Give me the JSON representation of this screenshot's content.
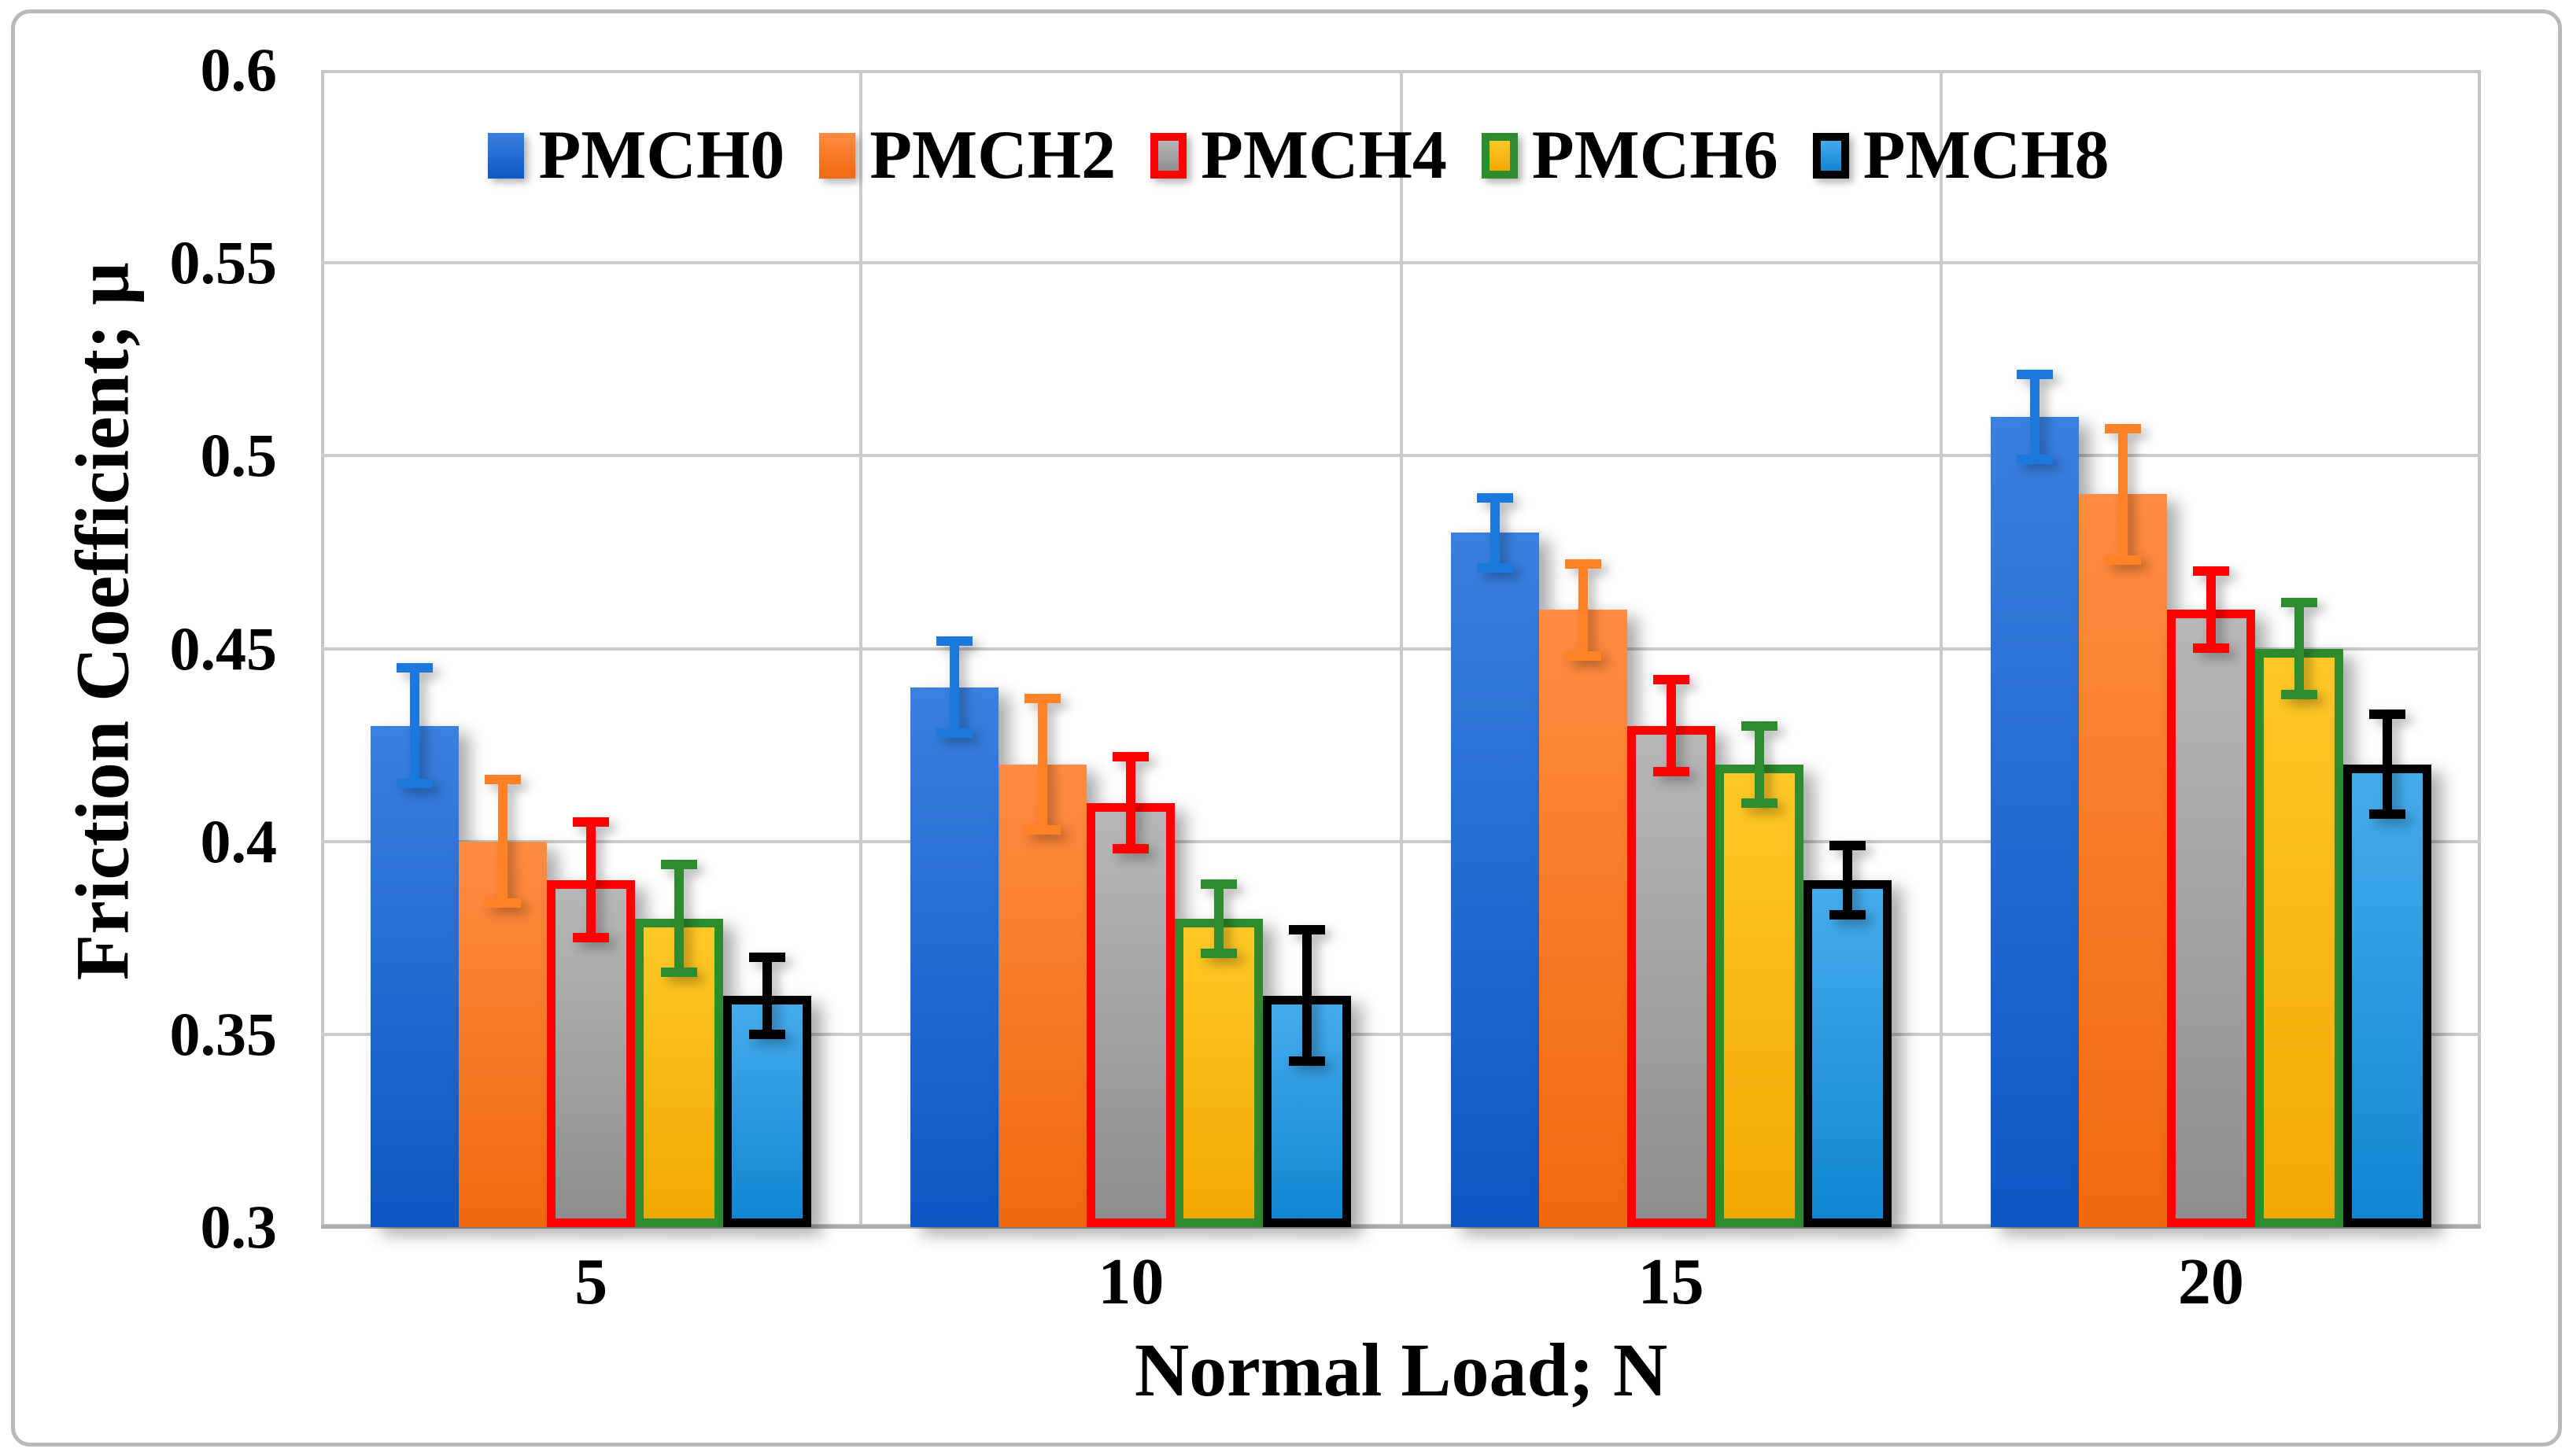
{
  "chart_data": {
    "type": "bar",
    "title": "",
    "xlabel": "Normal Load; N",
    "ylabel": "Friction Coefficient; μ",
    "categories": [
      "5",
      "10",
      "15",
      "20"
    ],
    "ylim": [
      0.3,
      0.6
    ],
    "ytick_step": 0.05,
    "ytick_labels": [
      "0.6",
      "0.55",
      "0.5",
      "0.45",
      "0.4",
      "0.35",
      "0.3"
    ],
    "grid": true,
    "legend_position": "top-center",
    "gridline_color": "#cbcbcb",
    "series": [
      {
        "name": "PMCH0",
        "values": [
          0.43,
          0.44,
          0.48,
          0.51
        ],
        "errors": [
          0.015,
          0.012,
          0.009,
          0.011
        ],
        "fill_top": "#3A80E0",
        "fill_bottom": "#0E57C4",
        "border_color": null,
        "error_color": "#1B78DC"
      },
      {
        "name": "PMCH2",
        "values": [
          0.4,
          0.42,
          0.46,
          0.49
        ],
        "errors": [
          0.016,
          0.017,
          0.012,
          0.017
        ],
        "fill_top": "#FF8C42",
        "fill_bottom": "#F0690E",
        "border_color": null,
        "error_color": "#FF8227"
      },
      {
        "name": "PMCH4",
        "values": [
          0.39,
          0.41,
          0.43,
          0.46
        ],
        "errors": [
          0.015,
          0.012,
          0.012,
          0.01
        ],
        "fill_top": "#B7B7B7",
        "fill_bottom": "#8E8E8E",
        "border_color": "#FF0000",
        "error_color": "#FF0000"
      },
      {
        "name": "PMCH6",
        "values": [
          0.38,
          0.38,
          0.42,
          0.45
        ],
        "errors": [
          0.014,
          0.009,
          0.01,
          0.012
        ],
        "fill_top": "#FFC926",
        "fill_bottom": "#F2A803",
        "border_color": "#2E8B2E",
        "error_color": "#2E8B2E"
      },
      {
        "name": "PMCH8",
        "values": [
          0.36,
          0.36,
          0.39,
          0.42
        ],
        "errors": [
          0.01,
          0.017,
          0.009,
          0.013
        ],
        "fill_top": "#45ACEC",
        "fill_bottom": "#1186D2",
        "border_color": "#000000",
        "error_color": "#000000"
      }
    ]
  }
}
